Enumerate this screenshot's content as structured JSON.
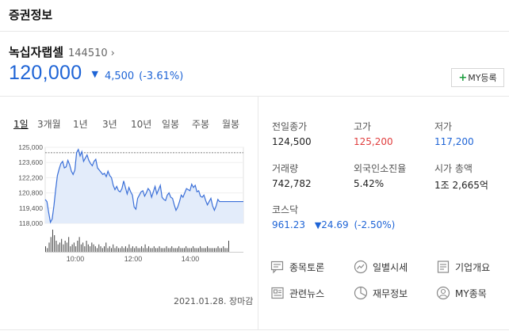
{
  "header": {
    "title": "증권정보"
  },
  "stock": {
    "name": "녹십자랩셀",
    "code": "144510",
    "chevron": "›",
    "price": "120,000",
    "direction_icon": "down-triangle-icon",
    "direction_glyph": "▼",
    "change": "4,500",
    "change_pct": "(-3.61%)"
  },
  "my_button": {
    "plus": "+",
    "label": "MY등록"
  },
  "tabs": [
    "1일",
    "3개월",
    "1년",
    "3년",
    "10년",
    "일봉",
    "주봉",
    "월봉"
  ],
  "chart_data": {
    "type": "line",
    "x_ticks": [
      "10:00",
      "12:00",
      "14:00"
    ],
    "y_ticks": [
      "125,000",
      "123,600",
      "122,200",
      "120,800",
      "119,400",
      "118,000"
    ],
    "ylim": [
      118000,
      125000
    ],
    "reference": 124500,
    "series": [
      {
        "values": [
          120200,
          120000,
          119000,
          118100,
          118400,
          119600,
          121100,
          122400,
          123000,
          123500,
          123700,
          123100,
          123200,
          123800,
          123400,
          122800,
          122500,
          122900,
          124500,
          124800,
          124200,
          124600,
          123700,
          124000,
          124300,
          123800,
          123500,
          123300,
          123700,
          123900,
          123100,
          122900,
          122700,
          122500,
          122600,
          122300,
          122800,
          122400,
          122200,
          121500,
          121100,
          121400,
          121000,
          120900,
          121200,
          121900,
          121300,
          120700,
          121300,
          120900,
          120600,
          119500,
          119300,
          120300,
          120600,
          120900,
          121000,
          120500,
          120800,
          121200,
          121000,
          120400,
          120900,
          121400,
          120700,
          121100,
          121500,
          120400,
          120200,
          120100,
          120600,
          120800,
          120400,
          120300,
          119700,
          119200,
          119500,
          120000,
          120600,
          120400,
          120800,
          121200,
          121100,
          121000,
          121600,
          121300,
          121500,
          120900,
          121000,
          120500,
          120400,
          120600,
          120100,
          119700,
          120000,
          120300,
          119600,
          119200,
          119600,
          120200,
          120000,
          120000,
          120000,
          120000,
          120000,
          120000
        ]
      }
    ],
    "volume": [
      3,
      2,
      5,
      8,
      12,
      9,
      6,
      4,
      5,
      7,
      4,
      6,
      5,
      8,
      3,
      4,
      5,
      3,
      6,
      8,
      4,
      5,
      3,
      6,
      4,
      3,
      5,
      4,
      3,
      2,
      4,
      3,
      2,
      3,
      5,
      2,
      3,
      2,
      4,
      2,
      3,
      2,
      2,
      3,
      2,
      3,
      2,
      4,
      2,
      3,
      2,
      3,
      2,
      2,
      3,
      2,
      4,
      2,
      3,
      2,
      2,
      3,
      2,
      2,
      3,
      2,
      2,
      2,
      3,
      2,
      2,
      3,
      2,
      2,
      2,
      3,
      2,
      2,
      2,
      3,
      2,
      2,
      2,
      3,
      2,
      2,
      2,
      3,
      2,
      2,
      2,
      3,
      2,
      2,
      2,
      2,
      2,
      3,
      2,
      2,
      3,
      2,
      2,
      6
    ]
  },
  "close_note": "2021.01.28. 장마감",
  "stats": {
    "prev_close": {
      "label": "전일종가",
      "value": "124,500"
    },
    "high": {
      "label": "고가",
      "value": "125,200"
    },
    "low": {
      "label": "저가",
      "value": "117,200"
    },
    "volume": {
      "label": "거래량",
      "value": "742,782"
    },
    "foreign": {
      "label": "외국인소진율",
      "value": "5.42%"
    },
    "market_cap": {
      "label": "시가 총액",
      "value": "1조 2,665억"
    }
  },
  "kospi": {
    "label": "코스닥",
    "value": "961.23",
    "glyph": "▼",
    "change": "24.69",
    "change_pct": "(-2.50%)"
  },
  "links": {
    "discussion": {
      "label": "종목토론",
      "icon": "discussion-icon"
    },
    "daily": {
      "label": "일별시세",
      "icon": "trend-chart-icon"
    },
    "overview": {
      "label": "기업개요",
      "icon": "document-icon"
    },
    "news": {
      "label": "관련뉴스",
      "icon": "news-icon"
    },
    "finance": {
      "label": "재무정보",
      "icon": "pie-chart-icon"
    },
    "my": {
      "label": "MY종목",
      "icon": "user-icon"
    }
  }
}
